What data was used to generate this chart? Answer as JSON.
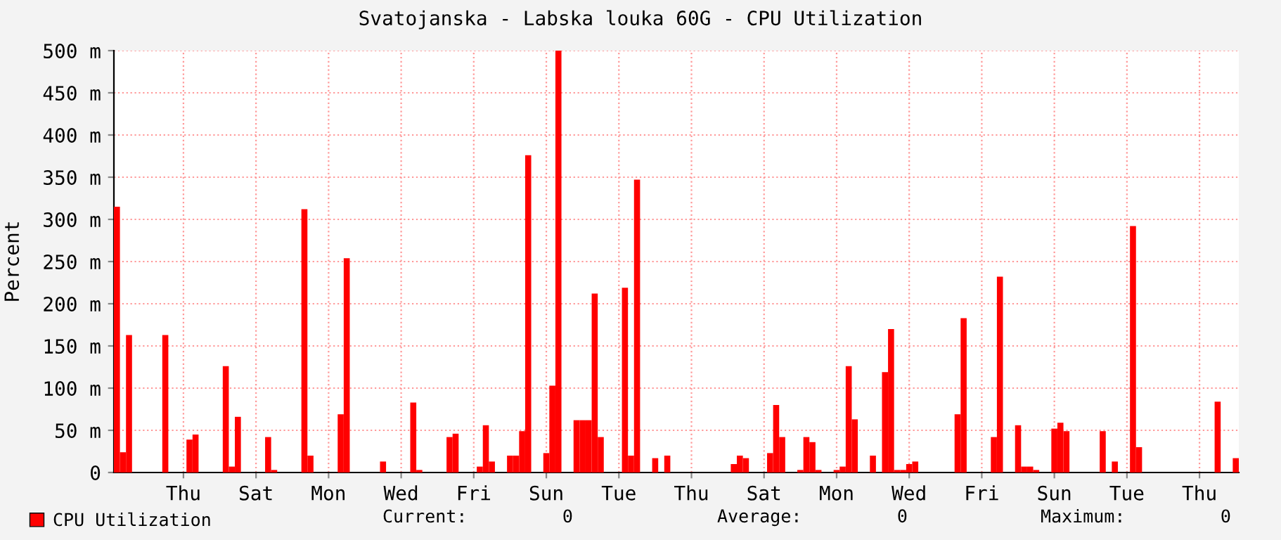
{
  "chart_data": {
    "type": "bar",
    "title": "Svatojanska - Labska louka 60G - CPU Utilization",
    "ylabel": "Percent",
    "categories": [
      null,
      null,
      null,
      null,
      null,
      null,
      null,
      null,
      null,
      null,
      null,
      "Thu",
      null,
      null,
      null,
      null,
      null,
      null,
      null,
      null,
      null,
      null,
      null,
      "Sat",
      null,
      null,
      null,
      null,
      null,
      null,
      null,
      null,
      null,
      null,
      null,
      "Mon",
      null,
      null,
      null,
      null,
      null,
      null,
      null,
      null,
      null,
      null,
      null,
      "Wed",
      null,
      null,
      null,
      null,
      null,
      null,
      null,
      null,
      null,
      null,
      null,
      "Fri",
      null,
      null,
      null,
      null,
      null,
      null,
      null,
      null,
      null,
      null,
      null,
      "Sun",
      null,
      null,
      null,
      null,
      null,
      null,
      null,
      null,
      null,
      null,
      null,
      "Tue",
      null,
      null,
      null,
      null,
      null,
      null,
      null,
      null,
      null,
      null,
      null,
      "Thu",
      null,
      null,
      null,
      null,
      null,
      null,
      null,
      null,
      null,
      null,
      null,
      "Sat",
      null,
      null,
      null,
      null,
      null,
      null,
      null,
      null,
      null,
      null,
      null,
      "Mon",
      null,
      null,
      null,
      null,
      null,
      null,
      null,
      null,
      null,
      null,
      null,
      "Wed",
      null,
      null,
      null,
      null,
      null,
      null,
      null,
      null,
      null,
      null,
      null,
      "Fri",
      null,
      null,
      null,
      null,
      null,
      null,
      null,
      null,
      null,
      null,
      null,
      "Sun",
      null,
      null,
      null,
      null,
      null,
      null,
      null,
      null,
      null,
      null,
      null,
      "Tue",
      null,
      null,
      null,
      null,
      null,
      null,
      null,
      null,
      null,
      null,
      null,
      "Thu",
      null,
      null,
      null,
      null,
      null,
      null
    ],
    "ylim": [
      0,
      500
    ],
    "yticks": [
      0,
      {
        "value": 50,
        "label": "50 m"
      },
      {
        "value": 100,
        "label": "100 m"
      },
      {
        "value": 150,
        "label": "150 m"
      },
      {
        "value": 200,
        "label": "200 m"
      },
      {
        "value": 250,
        "label": "250 m"
      },
      {
        "value": 300,
        "label": "300 m"
      },
      {
        "value": 350,
        "label": "350 m"
      },
      {
        "value": 400,
        "label": "400 m"
      },
      {
        "value": 450,
        "label": "450 m"
      },
      {
        "value": 500,
        "label": "500 m"
      }
    ],
    "grid": true,
    "legend": "bottom",
    "series": [
      {
        "name": "CPU Utilization",
        "color": "#ff0000",
        "values": [
          315,
          24,
          163,
          0,
          0,
          0,
          0,
          0,
          163,
          0,
          0,
          0,
          39,
          45,
          0,
          0,
          0,
          0,
          126,
          7,
          66,
          0,
          0,
          0,
          0,
          42,
          3,
          0,
          0,
          0,
          0,
          312,
          20,
          0,
          0,
          0,
          0,
          69,
          254,
          0,
          0,
          0,
          0,
          0,
          13,
          0,
          0,
          0,
          0,
          83,
          3,
          0,
          0,
          0,
          0,
          42,
          46,
          0,
          0,
          0,
          7,
          56,
          13,
          0,
          0,
          20,
          20,
          49,
          376,
          0,
          0,
          23,
          103,
          500,
          0,
          0,
          62,
          62,
          62,
          212,
          42,
          0,
          0,
          0,
          219,
          20,
          347,
          0,
          0,
          17,
          0,
          20,
          0,
          0,
          0,
          0,
          0,
          0,
          0,
          0,
          0,
          0,
          10,
          20,
          17,
          0,
          0,
          0,
          23,
          80,
          42,
          0,
          0,
          3,
          42,
          36,
          3,
          0,
          0,
          3,
          7,
          126,
          63,
          0,
          0,
          20,
          0,
          119,
          170,
          3,
          3,
          10,
          13,
          0,
          0,
          0,
          0,
          0,
          0,
          69,
          183,
          0,
          0,
          0,
          0,
          42,
          232,
          0,
          0,
          56,
          7,
          7,
          3,
          0,
          0,
          52,
          59,
          49,
          0,
          0,
          0,
          0,
          0,
          49,
          0,
          13,
          0,
          0,
          292,
          30,
          0,
          0,
          0,
          0,
          0,
          0,
          0,
          0,
          0,
          0,
          0,
          0,
          84,
          0,
          0,
          17
        ]
      }
    ],
    "annotations": [
      "Current:         0",
      "Average:         0",
      "Maximum:         0"
    ]
  }
}
